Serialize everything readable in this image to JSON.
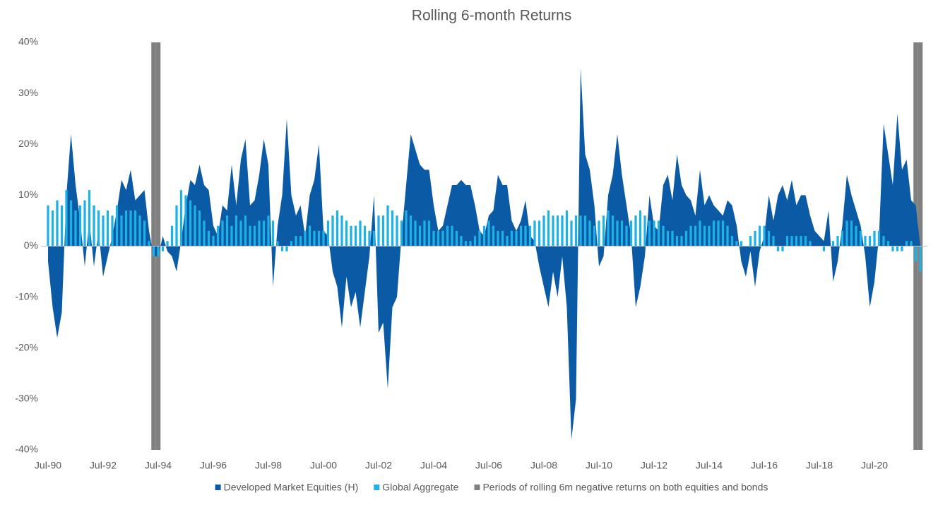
{
  "chart_data": {
    "type": "area-bar",
    "title": "Rolling 6-month Returns",
    "categories": [
      "Jul-90",
      null,
      null,
      null,
      null,
      null,
      null,
      null,
      null,
      null,
      null,
      null,
      "Jul-92",
      null,
      null,
      null,
      null,
      null,
      null,
      null,
      null,
      null,
      null,
      null,
      "Jul-94",
      null,
      null,
      null,
      null,
      null,
      null,
      null,
      null,
      null,
      null,
      null,
      "Jul-96",
      null,
      null,
      null,
      null,
      null,
      null,
      null,
      null,
      null,
      null,
      null,
      "Jul-98",
      null,
      null,
      null,
      null,
      null,
      null,
      null,
      null,
      null,
      null,
      null,
      "Jul-00",
      null,
      null,
      null,
      null,
      null,
      null,
      null,
      null,
      null,
      null,
      null,
      "Jul-02",
      null,
      null,
      null,
      null,
      null,
      null,
      null,
      null,
      null,
      null,
      null,
      "Jul-04",
      null,
      null,
      null,
      null,
      null,
      null,
      null,
      null,
      null,
      null,
      null,
      "Jul-06",
      null,
      null,
      null,
      null,
      null,
      null,
      null,
      null,
      null,
      null,
      null,
      "Jul-08",
      null,
      null,
      null,
      null,
      null,
      null,
      null,
      null,
      null,
      null,
      null,
      "Jul-10",
      null,
      null,
      null,
      null,
      null,
      null,
      null,
      null,
      null,
      null,
      null,
      "Jul-12",
      null,
      null,
      null,
      null,
      null,
      null,
      null,
      null,
      null,
      null,
      null,
      "Jul-14",
      null,
      null,
      null,
      null,
      null,
      null,
      null,
      null,
      null,
      null,
      null,
      "Jul-16",
      null,
      null,
      null,
      null,
      null,
      null,
      null,
      null,
      null,
      null,
      null,
      "Jul-18",
      null,
      null,
      null,
      null,
      null,
      null,
      null,
      null,
      null,
      null,
      null,
      "Jul-20",
      null,
      null,
      null,
      null,
      null,
      null,
      null,
      null,
      null,
      null
    ],
    "series": [
      {
        "name": "Developed Market Equities (H)",
        "color": "#0a5aa5",
        "kind": "area",
        "values": [
          -3,
          -12,
          -18,
          -13,
          10,
          22,
          12,
          5,
          -4,
          5,
          -4,
          3,
          -6,
          -2,
          2,
          7,
          13,
          11,
          15,
          9,
          10,
          11,
          3,
          -2,
          -2,
          2,
          -1,
          -2,
          -5,
          1,
          8,
          13,
          12,
          16,
          12,
          11,
          4,
          2,
          8,
          7,
          16,
          8,
          17,
          21,
          8,
          9,
          14,
          21,
          16,
          -8,
          4,
          10,
          25,
          10,
          6,
          8,
          2,
          10,
          13,
          20,
          3,
          2,
          -5,
          -8,
          -16,
          -6,
          -12,
          -9,
          -16,
          -9,
          -2,
          10,
          -17,
          -15,
          -28,
          -12,
          -10,
          2,
          12,
          22,
          19,
          16,
          15,
          15,
          8,
          3,
          4,
          8,
          12,
          12,
          13,
          12,
          12,
          8,
          3,
          2,
          6,
          7,
          14,
          12,
          12,
          5,
          3,
          5,
          9,
          2,
          1,
          -4,
          -8,
          -12,
          -5,
          -10,
          -2,
          -12,
          -38,
          -30,
          35,
          18,
          15,
          8,
          -4,
          -2,
          10,
          14,
          22,
          14,
          8,
          2,
          -12,
          -8,
          -2,
          10,
          4,
          3,
          12,
          14,
          9,
          18,
          12,
          10,
          9,
          6,
          15,
          8,
          10,
          8,
          7,
          6,
          9,
          8,
          4,
          -3,
          -6,
          -1,
          -8,
          -1,
          2,
          10,
          5,
          10,
          12,
          9,
          13,
          8,
          10,
          10,
          6,
          3,
          2,
          1,
          7,
          -7,
          -3,
          4,
          14,
          10,
          7,
          4,
          -2,
          -12,
          -7,
          2,
          24,
          18,
          12,
          26,
          15,
          17,
          9,
          8,
          0
        ]
      },
      {
        "name": "Global Aggregate",
        "color": "#1fb0e6",
        "kind": "bar",
        "values": [
          8,
          7,
          9,
          8,
          11,
          9,
          7,
          8,
          9,
          11,
          8,
          7,
          6,
          7,
          6,
          8,
          6,
          7,
          7,
          7,
          6,
          5,
          1,
          -2,
          -2,
          -1,
          1,
          4,
          8,
          11,
          10,
          9,
          8,
          7,
          5,
          3,
          2,
          4,
          5,
          6,
          4,
          6,
          5,
          6,
          4,
          4,
          5,
          5,
          6,
          5,
          1,
          -1,
          -1,
          1,
          2,
          2,
          3,
          4,
          3,
          3,
          3,
          5,
          6,
          7,
          6,
          5,
          4,
          4,
          5,
          4,
          3,
          3,
          6,
          6,
          8,
          7,
          6,
          5,
          7,
          6,
          5,
          4,
          5,
          5,
          3,
          3,
          3,
          4,
          4,
          3,
          2,
          1,
          1,
          2,
          3,
          4,
          5,
          4,
          3,
          3,
          2,
          3,
          3,
          4,
          4,
          4,
          5,
          5,
          6,
          7,
          6,
          6,
          6,
          7,
          5,
          6,
          6,
          6,
          5,
          4,
          5,
          6,
          7,
          6,
          5,
          5,
          4,
          5,
          6,
          7,
          6,
          5,
          5,
          5,
          4,
          3,
          3,
          2,
          2,
          3,
          4,
          4,
          5,
          4,
          4,
          5,
          5,
          5,
          4,
          2,
          1,
          1,
          0,
          2,
          3,
          4,
          4,
          3,
          2,
          -1,
          -1,
          2,
          2,
          2,
          2,
          2,
          1,
          0,
          0,
          -1,
          0,
          1,
          2,
          3,
          5,
          5,
          4,
          3,
          2,
          2,
          3,
          3,
          2,
          1,
          -1,
          -1,
          -1,
          1,
          1,
          -3,
          -5
        ]
      },
      {
        "name": "Periods of rolling 6m negative returns on both equities and bonds",
        "color": "#808080",
        "kind": "span",
        "axis": "y2",
        "values": [
          null,
          null,
          null,
          null,
          null,
          null,
          null,
          null,
          null,
          null,
          null,
          null,
          null,
          null,
          null,
          null,
          null,
          null,
          null,
          null,
          null,
          null,
          null,
          1,
          1,
          null,
          null,
          null,
          null,
          null,
          null,
          null,
          null,
          null,
          null,
          null,
          null,
          null,
          null,
          null,
          null,
          null,
          null,
          null,
          null,
          null,
          null,
          null,
          null,
          null,
          null,
          null,
          null,
          null,
          null,
          null,
          null,
          null,
          null,
          null,
          null,
          null,
          null,
          null,
          null,
          null,
          null,
          null,
          null,
          null,
          null,
          null,
          null,
          null,
          null,
          null,
          null,
          null,
          null,
          null,
          null,
          null,
          null,
          null,
          null,
          null,
          null,
          null,
          null,
          null,
          null,
          null,
          null,
          null,
          null,
          null,
          null,
          null,
          null,
          null,
          null,
          null,
          null,
          null,
          null,
          null,
          null,
          null,
          null,
          null,
          null,
          null,
          null,
          null,
          null,
          null,
          null,
          null,
          null,
          null,
          null,
          null,
          null,
          null,
          null,
          null,
          null,
          null,
          null,
          null,
          null,
          null,
          null,
          null,
          null,
          null,
          null,
          null,
          null,
          null,
          null,
          null,
          null,
          null,
          null,
          null,
          null,
          null,
          null,
          null,
          null,
          null,
          null,
          null,
          null,
          null,
          null,
          null,
          null,
          null,
          null,
          null,
          null,
          null,
          null,
          null,
          null,
          null,
          null,
          null,
          null,
          null,
          null,
          null,
          null,
          null,
          null,
          null,
          null,
          null,
          null,
          null,
          null,
          null,
          null,
          null,
          null,
          null,
          null,
          1,
          1
        ]
      }
    ],
    "ylim": [
      -40,
      40
    ],
    "yticks": [
      {
        "value": -40,
        "label": "-40%"
      },
      {
        "value": -30,
        "label": "-30%"
      },
      {
        "value": -20,
        "label": "-20%"
      },
      {
        "value": -10,
        "label": "-10%"
      },
      {
        "value": 0,
        "label": "0%"
      },
      {
        "value": 10,
        "label": "10%"
      },
      {
        "value": 20,
        "label": "20%"
      },
      {
        "value": 30,
        "label": "30%"
      },
      {
        "value": 40,
        "label": "40%"
      }
    ],
    "y2lim": [
      0,
      1
    ],
    "grid": false,
    "legend": "bottom"
  }
}
